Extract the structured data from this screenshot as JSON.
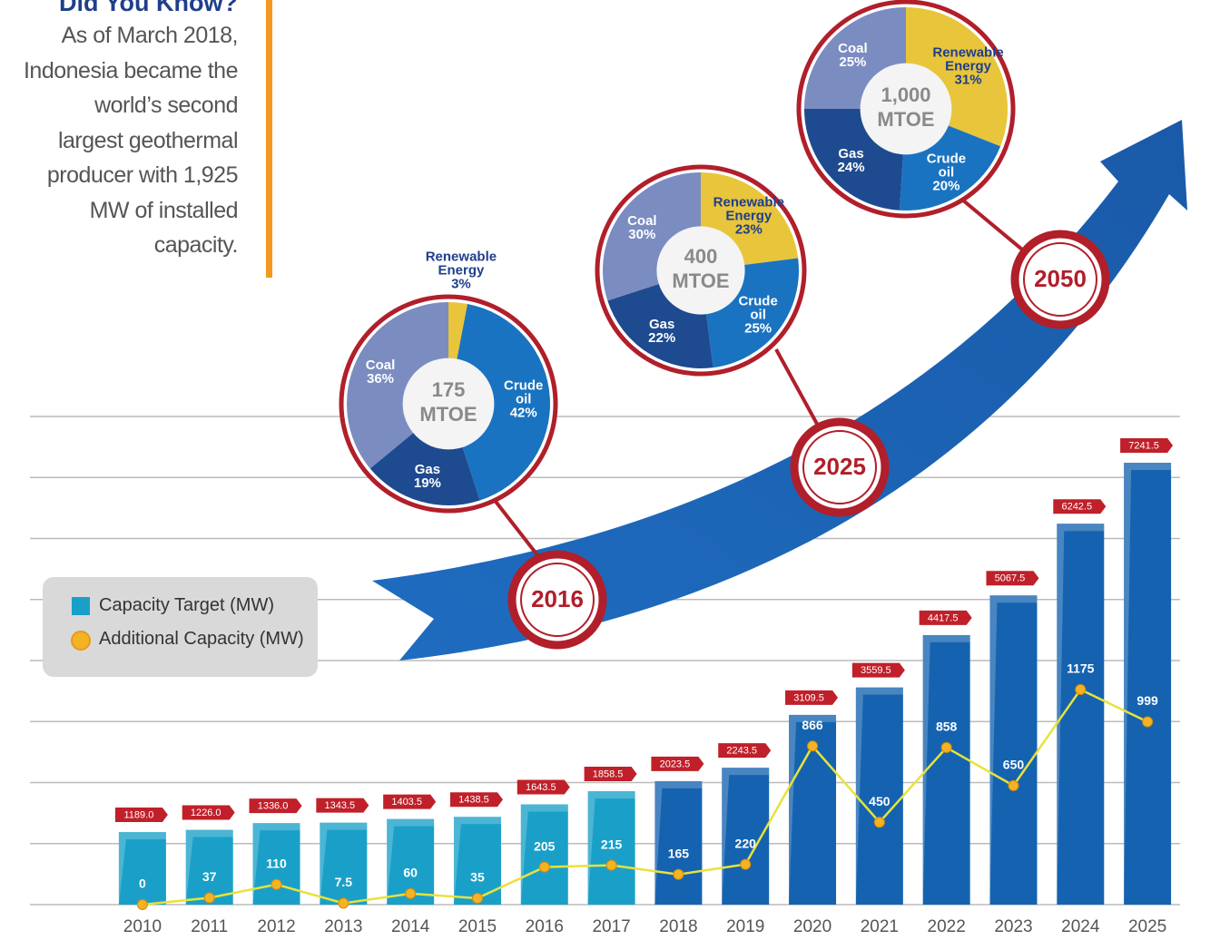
{
  "sidebar": {
    "title": "Did You Know?",
    "lines": [
      "As of March 2018,",
      "Indonesia became the",
      "world’s second",
      "largest geothermal",
      "producer with 1,925",
      "MW of installed",
      "capacity."
    ]
  },
  "chart_data": [
    {
      "type": "bar_line",
      "categories": [
        "2010",
        "2011",
        "2012",
        "2013",
        "2014",
        "2015",
        "2016",
        "2017",
        "2018",
        "2019",
        "2020",
        "2021",
        "2022",
        "2023",
        "2024",
        "2025"
      ],
      "series": [
        {
          "name": "Capacity Target (MW)",
          "color": "#1aa0c8",
          "colors": [
            "#1aa0c8",
            "#1aa0c8",
            "#1aa0c8",
            "#1aa0c8",
            "#1aa0c8",
            "#1aa0c8",
            "#1aa0c8",
            "#1aa0c8",
            "#1563b0",
            "#1563b0",
            "#1563b0",
            "#1563b0",
            "#1563b0",
            "#1563b0",
            "#1563b0",
            "#1563b0"
          ],
          "values": [
            1189,
            1226,
            1336,
            1343.5,
            1403.5,
            1438.5,
            1643.5,
            1858.5,
            2023.5,
            2243.5,
            3109.5,
            3559.5,
            4417.5,
            5067.5,
            6242.5,
            7241.5
          ],
          "value_labels": [
            "1189.0",
            "1226.0",
            "1336.0",
            "1343.5",
            "1403.5",
            "1438.5",
            "1643.5",
            "1858.5",
            "2023.5",
            "2243.5",
            "3109.5",
            "3559.5",
            "4417.5",
            "5067.5",
            "6242.5",
            "7241.5"
          ]
        },
        {
          "name": "Additional Capacity (MW)",
          "type": "line",
          "axis": "y2",
          "color": "#e8e23a",
          "marker_color": "#f3b324",
          "values": [
            0,
            37,
            110,
            7.5,
            60,
            35,
            205,
            215,
            165,
            220,
            866,
            450,
            858,
            650,
            1175,
            999
          ]
        }
      ],
      "ylim": [
        0,
        8000
      ],
      "yticks": [
        0,
        1000,
        2000,
        3000,
        4000,
        5000,
        6000,
        7000,
        8000
      ],
      "y2lim": [
        0,
        2667
      ],
      "grid": true
    },
    {
      "type": "pie",
      "year": "2016",
      "total": 175,
      "unit": "MTOE",
      "categories": [
        "Renewable Energy",
        "Crude oil",
        "Gas",
        "Coal"
      ],
      "values": [
        3,
        42,
        19,
        36
      ],
      "value_labels": [
        "3%",
        "42%",
        "19%",
        "36%"
      ],
      "colors": [
        "#e8c53a",
        "#1a73c0",
        "#1e4a8f",
        "#7b8cc0"
      ]
    },
    {
      "type": "pie",
      "year": "2025",
      "total": 400,
      "unit": "MTOE",
      "categories": [
        "Renewable Energy",
        "Crude oil",
        "Gas",
        "Coal"
      ],
      "values": [
        23,
        25,
        22,
        30
      ],
      "value_labels": [
        "23%",
        "25%",
        "22%",
        "30%"
      ],
      "colors": [
        "#e8c53a",
        "#1a73c0",
        "#1e4a8f",
        "#7b8cc0"
      ]
    },
    {
      "type": "pie",
      "year": "2050",
      "total": {
        "value": 1000,
        "label": "1,000"
      },
      "unit": "MTOE",
      "categories": [
        "Renewable Energy",
        "Crude oil",
        "Gas",
        "Coal"
      ],
      "values": [
        31,
        20,
        24,
        25
      ],
      "value_labels": [
        "31%",
        "20%",
        "24%",
        "25%"
      ],
      "colors": [
        "#e8c53a",
        "#1a73c0",
        "#1e4a8f",
        "#7b8cc0"
      ]
    }
  ]
}
